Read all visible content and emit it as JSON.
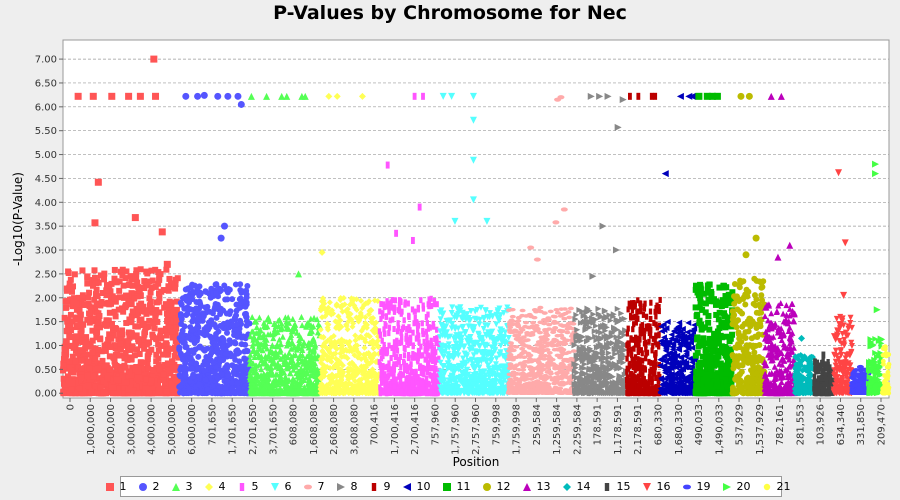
{
  "chart_data": {
    "type": "scatter",
    "title": "P-Values by Chromosome for Nec",
    "xlabel": "Position",
    "ylabel": "-Log10(P-Value)",
    "ylim": [
      -0.1,
      7.4
    ],
    "y_ticks": [
      "0.00",
      "0.50",
      "1.00",
      "1.50",
      "2.00",
      "2.50",
      "3.00",
      "3.50",
      "4.00",
      "4.50",
      "5.00",
      "5.50",
      "6.00",
      "6.50",
      "7.00"
    ],
    "grid": "horizontal dashed",
    "legend_position": "bottom",
    "x_tick_labels": [
      "0",
      "1,000,000",
      "2,000,000",
      "3,000,000",
      "4,000,000",
      "5,000,000",
      "6,000,000",
      "701,650",
      "1,701,650",
      "2,701,650",
      "3,701,650",
      "608,080",
      "1,608,080",
      "2,608,080",
      "3,608,080",
      "700,416",
      "1,700,416",
      "2,700,416",
      "757,960",
      "1,757,960",
      "2,757,960",
      "759,998",
      "1,759,998",
      "259,584",
      "1,259,584",
      "2,259,584",
      "178,591",
      "1,178,591",
      "2,178,591",
      "680,330",
      "1,680,330",
      "490,033",
      "1,490,033",
      "537,929",
      "1,537,929",
      "782,161",
      "281,553",
      "103,926",
      "634,340",
      "331,850",
      "209,470"
    ],
    "series": [
      {
        "name": "1",
        "color": "#ff5555",
        "marker": "square",
        "x_range": [
          0,
          6.9
        ],
        "base_max": 2.6,
        "peaks": [
          [
            0.4,
            2.2
          ],
          [
            0.9,
            6.22
          ],
          [
            1.8,
            6.22
          ],
          [
            1.9,
            3.57
          ],
          [
            2.1,
            4.42
          ],
          [
            2.9,
            6.22
          ],
          [
            3.9,
            6.22
          ],
          [
            4.3,
            3.68
          ],
          [
            4.6,
            6.22
          ],
          [
            5.4,
            7.0
          ],
          [
            5.5,
            6.22
          ],
          [
            5.9,
            3.38
          ],
          [
            6.2,
            2.7
          ]
        ]
      },
      {
        "name": "2",
        "color": "#5555ff",
        "marker": "circle",
        "x_range": [
          6.9,
          11.1
        ],
        "base_max": 2.3,
        "peaks": [
          [
            7.3,
            6.22
          ],
          [
            8.0,
            6.22
          ],
          [
            8.4,
            6.24
          ],
          [
            9.2,
            6.22
          ],
          [
            9.6,
            3.5
          ],
          [
            9.8,
            6.22
          ],
          [
            10.4,
            6.22
          ],
          [
            10.6,
            6.05
          ],
          [
            9.4,
            3.25
          ]
        ]
      },
      {
        "name": "3",
        "color": "#55ff55",
        "marker": "triangle-up",
        "x_range": [
          11.1,
          15.3
        ],
        "base_max": 1.6,
        "peaks": [
          [
            11.2,
            6.22
          ],
          [
            12.1,
            6.22
          ],
          [
            13.0,
            6.22
          ],
          [
            13.3,
            6.22
          ],
          [
            14.2,
            6.22
          ],
          [
            14.4,
            6.22
          ],
          [
            14.0,
            2.5
          ]
        ]
      },
      {
        "name": "4",
        "color": "#ffff55",
        "marker": "diamond",
        "x_range": [
          15.3,
          18.8
        ],
        "base_max": 2.0,
        "peaks": [
          [
            15.8,
            6.22
          ],
          [
            16.3,
            6.22
          ],
          [
            17.8,
            6.22
          ],
          [
            15.4,
            2.95
          ]
        ]
      },
      {
        "name": "5",
        "color": "#ff55ff",
        "marker": "rect",
        "x_range": [
          18.8,
          22.4
        ],
        "base_max": 2.0,
        "peaks": [
          [
            19.3,
            4.78
          ],
          [
            19.8,
            3.35
          ],
          [
            20.9,
            6.22
          ],
          [
            21.4,
            6.22
          ],
          [
            21.2,
            3.9
          ],
          [
            20.8,
            3.2
          ]
        ]
      },
      {
        "name": "6",
        "color": "#55ffff",
        "marker": "triangle-down",
        "x_range": [
          22.4,
          26.5
        ],
        "base_max": 1.8,
        "peaks": [
          [
            22.6,
            6.22
          ],
          [
            23.1,
            6.22
          ],
          [
            24.4,
            6.22
          ],
          [
            24.4,
            5.72
          ],
          [
            24.4,
            4.88
          ],
          [
            24.4,
            4.05
          ],
          [
            25.2,
            3.6
          ],
          [
            23.3,
            3.6
          ]
        ]
      },
      {
        "name": "7",
        "color": "#ffaaaa",
        "marker": "oval",
        "x_range": [
          26.5,
          30.4
        ],
        "base_max": 1.8,
        "peaks": [
          [
            29.4,
            6.15
          ],
          [
            29.6,
            6.2
          ],
          [
            29.8,
            3.85
          ],
          [
            29.3,
            3.58
          ],
          [
            27.8,
            3.05
          ],
          [
            28.2,
            2.8
          ]
        ]
      },
      {
        "name": "8",
        "color": "#888888",
        "marker": "triangle-right",
        "x_range": [
          30.4,
          33.5
        ],
        "base_max": 1.8,
        "peaks": [
          [
            31.4,
            6.22
          ],
          [
            31.9,
            6.22
          ],
          [
            32.4,
            6.22
          ],
          [
            33.3,
            6.15
          ],
          [
            33.0,
            5.57
          ],
          [
            32.1,
            3.5
          ],
          [
            32.9,
            3.0
          ],
          [
            31.5,
            2.45
          ]
        ]
      },
      {
        "name": "9",
        "color": "#bb0000",
        "marker": "rect",
        "x_range": [
          33.5,
          35.5
        ],
        "base_max": 2.0,
        "peaks": [
          [
            33.7,
            6.22
          ],
          [
            34.2,
            6.22
          ],
          [
            35.0,
            6.22
          ],
          [
            35.2,
            6.22
          ]
        ]
      },
      {
        "name": "10",
        "color": "#0000bb",
        "marker": "triangle-left",
        "x_range": [
          35.5,
          37.6
        ],
        "base_max": 1.5,
        "peaks": [
          [
            35.8,
            4.6
          ],
          [
            36.7,
            6.22
          ],
          [
            37.2,
            6.22
          ],
          [
            37.4,
            6.22
          ]
        ]
      },
      {
        "name": "11",
        "color": "#00bb00",
        "marker": "square",
        "x_range": [
          37.6,
          39.8
        ],
        "base_max": 2.3,
        "peaks": [
          [
            37.8,
            6.22
          ],
          [
            38.3,
            6.22
          ],
          [
            38.6,
            6.22
          ],
          [
            38.9,
            6.22
          ]
        ]
      },
      {
        "name": "12",
        "color": "#bbbb00",
        "marker": "circle",
        "x_range": [
          39.8,
          41.7
        ],
        "base_max": 2.4,
        "peaks": [
          [
            40.3,
            6.22
          ],
          [
            40.8,
            6.22
          ],
          [
            41.2,
            3.25
          ],
          [
            40.6,
            2.9
          ]
        ]
      },
      {
        "name": "13",
        "color": "#bb00bb",
        "marker": "triangle-up",
        "x_range": [
          41.7,
          43.5
        ],
        "base_max": 1.9,
        "peaks": [
          [
            42.1,
            6.22
          ],
          [
            42.7,
            6.22
          ],
          [
            43.2,
            3.1
          ],
          [
            42.5,
            2.85
          ]
        ]
      },
      {
        "name": "14",
        "color": "#00bbbb",
        "marker": "diamond",
        "x_range": [
          43.5,
          44.6
        ],
        "base_max": 0.8,
        "peaks": [
          [
            43.9,
            1.15
          ],
          [
            44.3,
            0.3
          ]
        ]
      },
      {
        "name": "15",
        "color": "#444444",
        "marker": "rect",
        "x_range": [
          44.6,
          45.8
        ],
        "base_max": 0.7,
        "peaks": [
          [
            45.2,
            0.8
          ]
        ]
      },
      {
        "name": "16",
        "color": "#ff4444",
        "marker": "triangle-down",
        "x_range": [
          45.8,
          46.9
        ],
        "base_max": 1.6,
        "peaks": [
          [
            46.1,
            4.62
          ],
          [
            46.5,
            3.15
          ],
          [
            46.4,
            2.05
          ]
        ]
      },
      {
        "name": "19",
        "color": "#4444ff",
        "marker": "oval",
        "x_range": [
          46.9,
          47.9
        ],
        "base_max": 0.5,
        "peaks": [
          [
            47.4,
            0.55
          ]
        ]
      },
      {
        "name": "20",
        "color": "#44ff44",
        "marker": "triangle-right",
        "x_range": [
          47.9,
          48.7
        ],
        "base_max": 1.2,
        "peaks": [
          [
            48.3,
            4.8
          ],
          [
            48.3,
            4.6
          ],
          [
            48.4,
            1.75
          ]
        ]
      },
      {
        "name": "21",
        "color": "#ffff44",
        "marker": "circle-small",
        "x_range": [
          48.7,
          49.1
        ],
        "base_max": 1.0,
        "peaks": []
      }
    ]
  }
}
